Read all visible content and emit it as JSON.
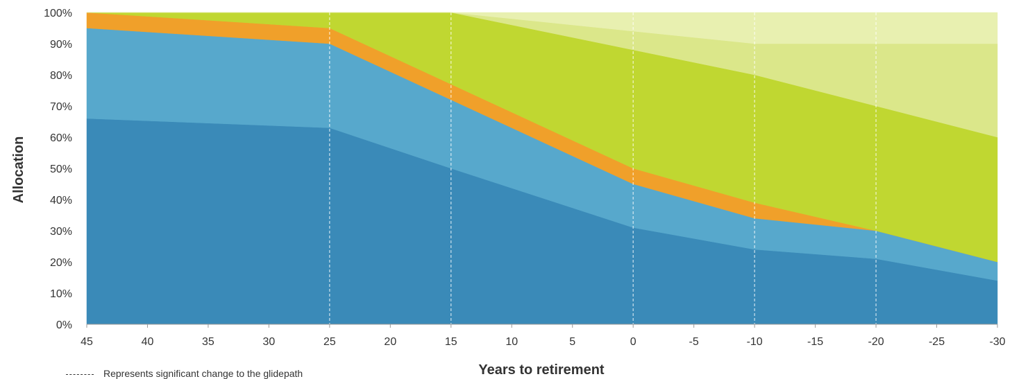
{
  "chart_data": {
    "type": "area",
    "stacked": true,
    "x": [
      45,
      25,
      15,
      0,
      -10,
      -20,
      -30
    ],
    "series": [
      {
        "values": [
          66,
          63,
          50,
          31,
          24,
          21,
          14
        ],
        "color": "#3a8ab8"
      },
      {
        "values": [
          29,
          27,
          22,
          14,
          10,
          9,
          6
        ],
        "color": "#57a8cc"
      },
      {
        "values": [
          5,
          5,
          5,
          5,
          5,
          0,
          0
        ],
        "color": "#f0a02a"
      },
      {
        "values": [
          0,
          5,
          23,
          38,
          41,
          40,
          40
        ],
        "color": "#c0d731"
      },
      {
        "values": [
          0,
          0,
          0,
          6,
          10,
          20,
          30
        ],
        "color": "#dbe78a"
      },
      {
        "values": [
          0,
          0,
          0,
          6,
          10,
          10,
          10
        ],
        "color": "#e8f0b0"
      }
    ],
    "xlabel": "Years to retirement",
    "ylabel": "Allocation",
    "xticks": [
      "45",
      "40",
      "35",
      "30",
      "25",
      "20",
      "15",
      "10",
      "5",
      "0",
      "-5",
      "-10",
      "-15",
      "-20",
      "-25",
      "-30"
    ],
    "yticks": [
      "0%",
      "10%",
      "20%",
      "30%",
      "40%",
      "50%",
      "60%",
      "70%",
      "80%",
      "90%",
      "100%"
    ],
    "xlim": [
      45,
      -30
    ],
    "ylim": [
      0,
      100
    ],
    "significant_changes_x": [
      25,
      15,
      0,
      -10,
      -20
    ],
    "grid": false,
    "legend": "Represents significant change to the glidepath"
  }
}
